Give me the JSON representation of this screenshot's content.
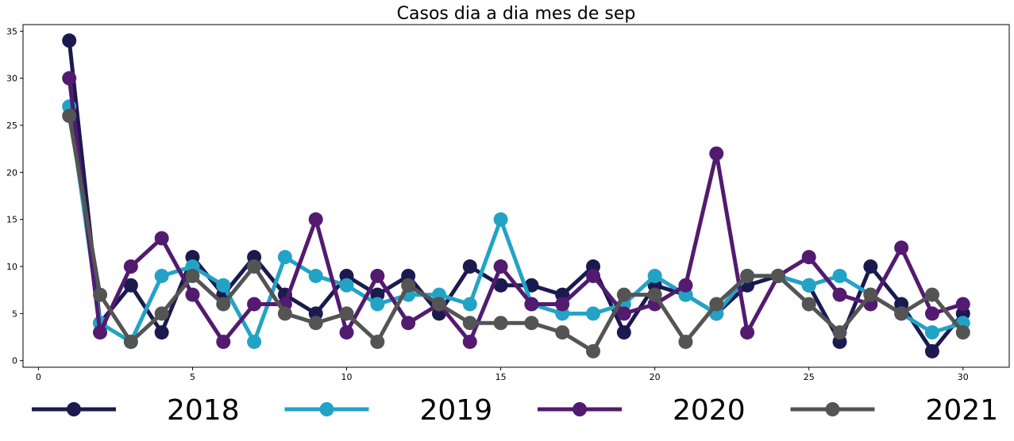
{
  "chart_data": {
    "type": "line",
    "title": "Casos dia a dia mes de sep",
    "xlabel": "",
    "ylabel": "",
    "xlim": [
      -0.5,
      31.5
    ],
    "ylim": [
      -0.7,
      35.7
    ],
    "xticks": [
      0,
      5,
      10,
      15,
      20,
      25,
      30
    ],
    "yticks": [
      0,
      5,
      10,
      15,
      20,
      25,
      30,
      35
    ],
    "grid": false,
    "legend_position": "bottom",
    "x": [
      1,
      2,
      3,
      4,
      5,
      6,
      7,
      8,
      9,
      10,
      11,
      12,
      13,
      14,
      15,
      16,
      17,
      18,
      19,
      20,
      21,
      22,
      23,
      24,
      25,
      26,
      27,
      28,
      29,
      30
    ],
    "series": [
      {
        "name": "2018",
        "color": "#1b1a4f",
        "values": [
          34,
          4,
          8,
          3,
          11,
          7,
          11,
          7,
          5,
          9,
          7,
          9,
          5,
          10,
          8,
          8,
          7,
          10,
          3,
          8,
          7,
          5,
          8,
          9,
          8,
          2,
          10,
          6,
          1,
          5
        ]
      },
      {
        "name": "2019",
        "color": "#22a3c6",
        "values": [
          27,
          4,
          2,
          9,
          10,
          8,
          2,
          11,
          9,
          8,
          6,
          7,
          7,
          6,
          15,
          6,
          5,
          5,
          6,
          9,
          7,
          5,
          9,
          9,
          8,
          9,
          7,
          5,
          3,
          4
        ]
      },
      {
        "name": "2020",
        "color": "#521b6f",
        "values": [
          30,
          3,
          10,
          13,
          7,
          2,
          6,
          6,
          15,
          3,
          9,
          4,
          6,
          2,
          10,
          6,
          6,
          9,
          5,
          6,
          8,
          22,
          3,
          9,
          11,
          7,
          6,
          12,
          5,
          6
        ]
      },
      {
        "name": "2021",
        "color": "#545454",
        "values": [
          26,
          7,
          2,
          5,
          9,
          6,
          10,
          5,
          4,
          5,
          2,
          8,
          6,
          4,
          4,
          4,
          3,
          1,
          7,
          7,
          2,
          6,
          9,
          9,
          6,
          3,
          7,
          5,
          7,
          3
        ]
      }
    ]
  }
}
